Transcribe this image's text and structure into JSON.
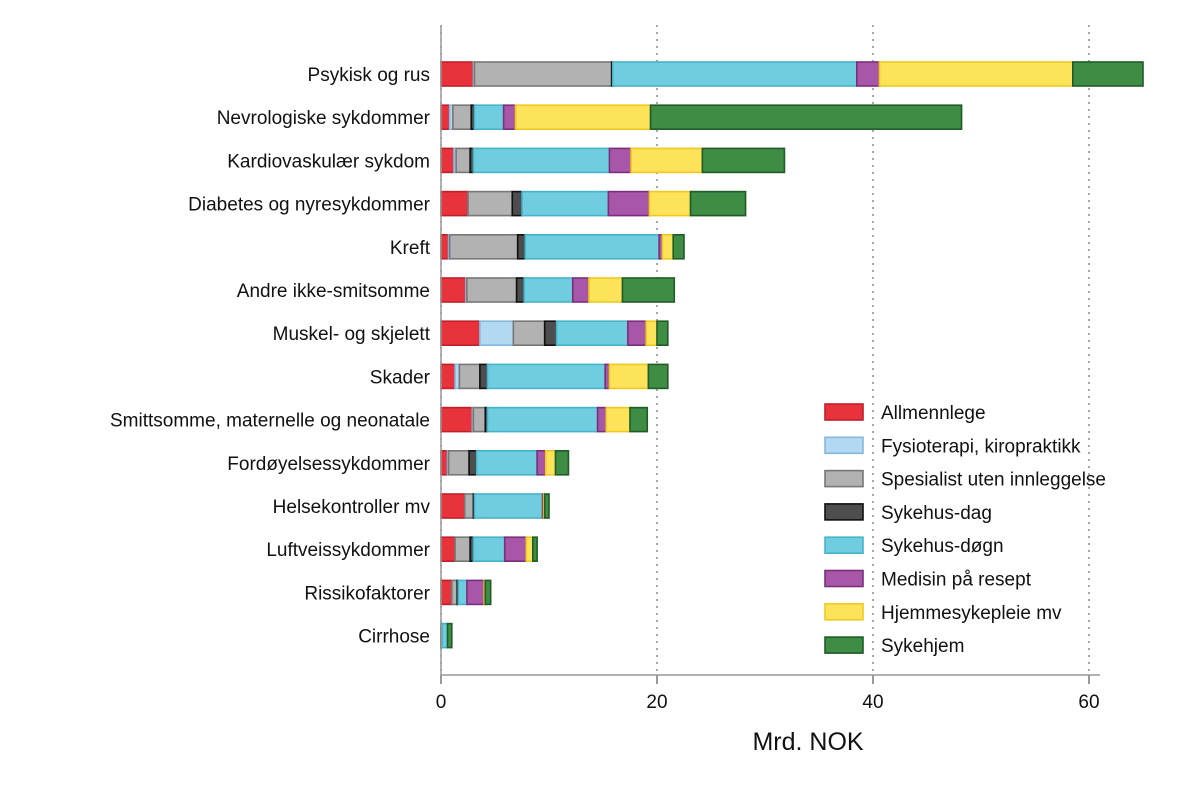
{
  "chart_data": {
    "type": "bar",
    "orientation": "horizontal",
    "stacked": true,
    "title": "",
    "xlabel": "Mrd. NOK",
    "ylabel": "",
    "xlim": [
      0,
      65
    ],
    "xticks": [
      0,
      20,
      40,
      60
    ],
    "grid": "vertical dotted",
    "legend_position": "bottom-right",
    "categories": [
      "Psykisk og rus",
      "Nevrologiske sykdommer",
      "Kardiovaskulær sykdom",
      "Diabetes og nyresykdommer",
      "Kreft",
      "Andre ikke-smitsomme",
      "Muskel- og skjelett",
      "Skader",
      "Smittsomme, maternelle og neonatale",
      "Fordøyelsessykdommer",
      "Helsekontroller mv",
      "Luftveissykdommer",
      "Rissikofaktorer",
      "Cirrhose"
    ],
    "series": [
      {
        "name": "Allmennlege",
        "color": "#e8323c",
        "border": "#c0202a",
        "values": [
          3.0,
          0.8,
          1.2,
          2.5,
          0.7,
          2.3,
          3.6,
          1.3,
          2.9,
          0.6,
          2.2,
          1.3,
          1.0,
          0.0
        ]
      },
      {
        "name": "Fysioterapi, kiropraktikk",
        "color": "#b3d9f2",
        "border": "#86b8dc",
        "values": [
          0.1,
          0.3,
          0.2,
          0.0,
          0.1,
          0.1,
          3.1,
          0.4,
          0.1,
          0.1,
          0.0,
          0.0,
          0.0,
          0.0
        ]
      },
      {
        "name": "Spesialist uten innleggelse",
        "color": "#b2b2b2",
        "border": "#777777",
        "values": [
          12.7,
          1.7,
          1.3,
          4.1,
          6.3,
          4.6,
          2.9,
          1.9,
          1.1,
          1.9,
          0.8,
          1.4,
          0.5,
          0.0
        ]
      },
      {
        "name": "Sykehus-dag",
        "color": "#4d4d4d",
        "border": "#111111",
        "values": [
          0.1,
          0.3,
          0.3,
          0.9,
          0.7,
          0.7,
          1.1,
          0.7,
          0.2,
          0.7,
          0.1,
          0.3,
          0.1,
          0.1
        ]
      },
      {
        "name": "Sykehus-døgn",
        "color": "#70cde0",
        "border": "#45b3c8",
        "values": [
          22.6,
          2.7,
          12.6,
          8.0,
          12.4,
          4.5,
          6.6,
          10.9,
          10.2,
          5.6,
          6.3,
          2.9,
          0.8,
          0.5
        ]
      },
      {
        "name": "Medisin på resept",
        "color": "#a857a8",
        "border": "#7a2f7c",
        "values": [
          2.1,
          1.1,
          2.0,
          3.8,
          0.3,
          1.5,
          1.7,
          0.4,
          0.8,
          0.8,
          0.1,
          2.0,
          1.6,
          0.0
        ]
      },
      {
        "name": "Hjemmesykepleie mv",
        "color": "#fde35a",
        "border": "#f0c820",
        "values": [
          17.9,
          12.5,
          6.6,
          3.8,
          1.0,
          3.1,
          1.0,
          3.6,
          2.2,
          0.9,
          0.1,
          0.6,
          0.1,
          0.0
        ]
      },
      {
        "name": "Sykehjem",
        "color": "#3f8c45",
        "border": "#1f5c28",
        "values": [
          6.5,
          28.8,
          7.6,
          5.1,
          1.0,
          4.8,
          1.0,
          1.8,
          1.6,
          1.2,
          0.4,
          0.4,
          0.5,
          0.4
        ]
      }
    ]
  }
}
